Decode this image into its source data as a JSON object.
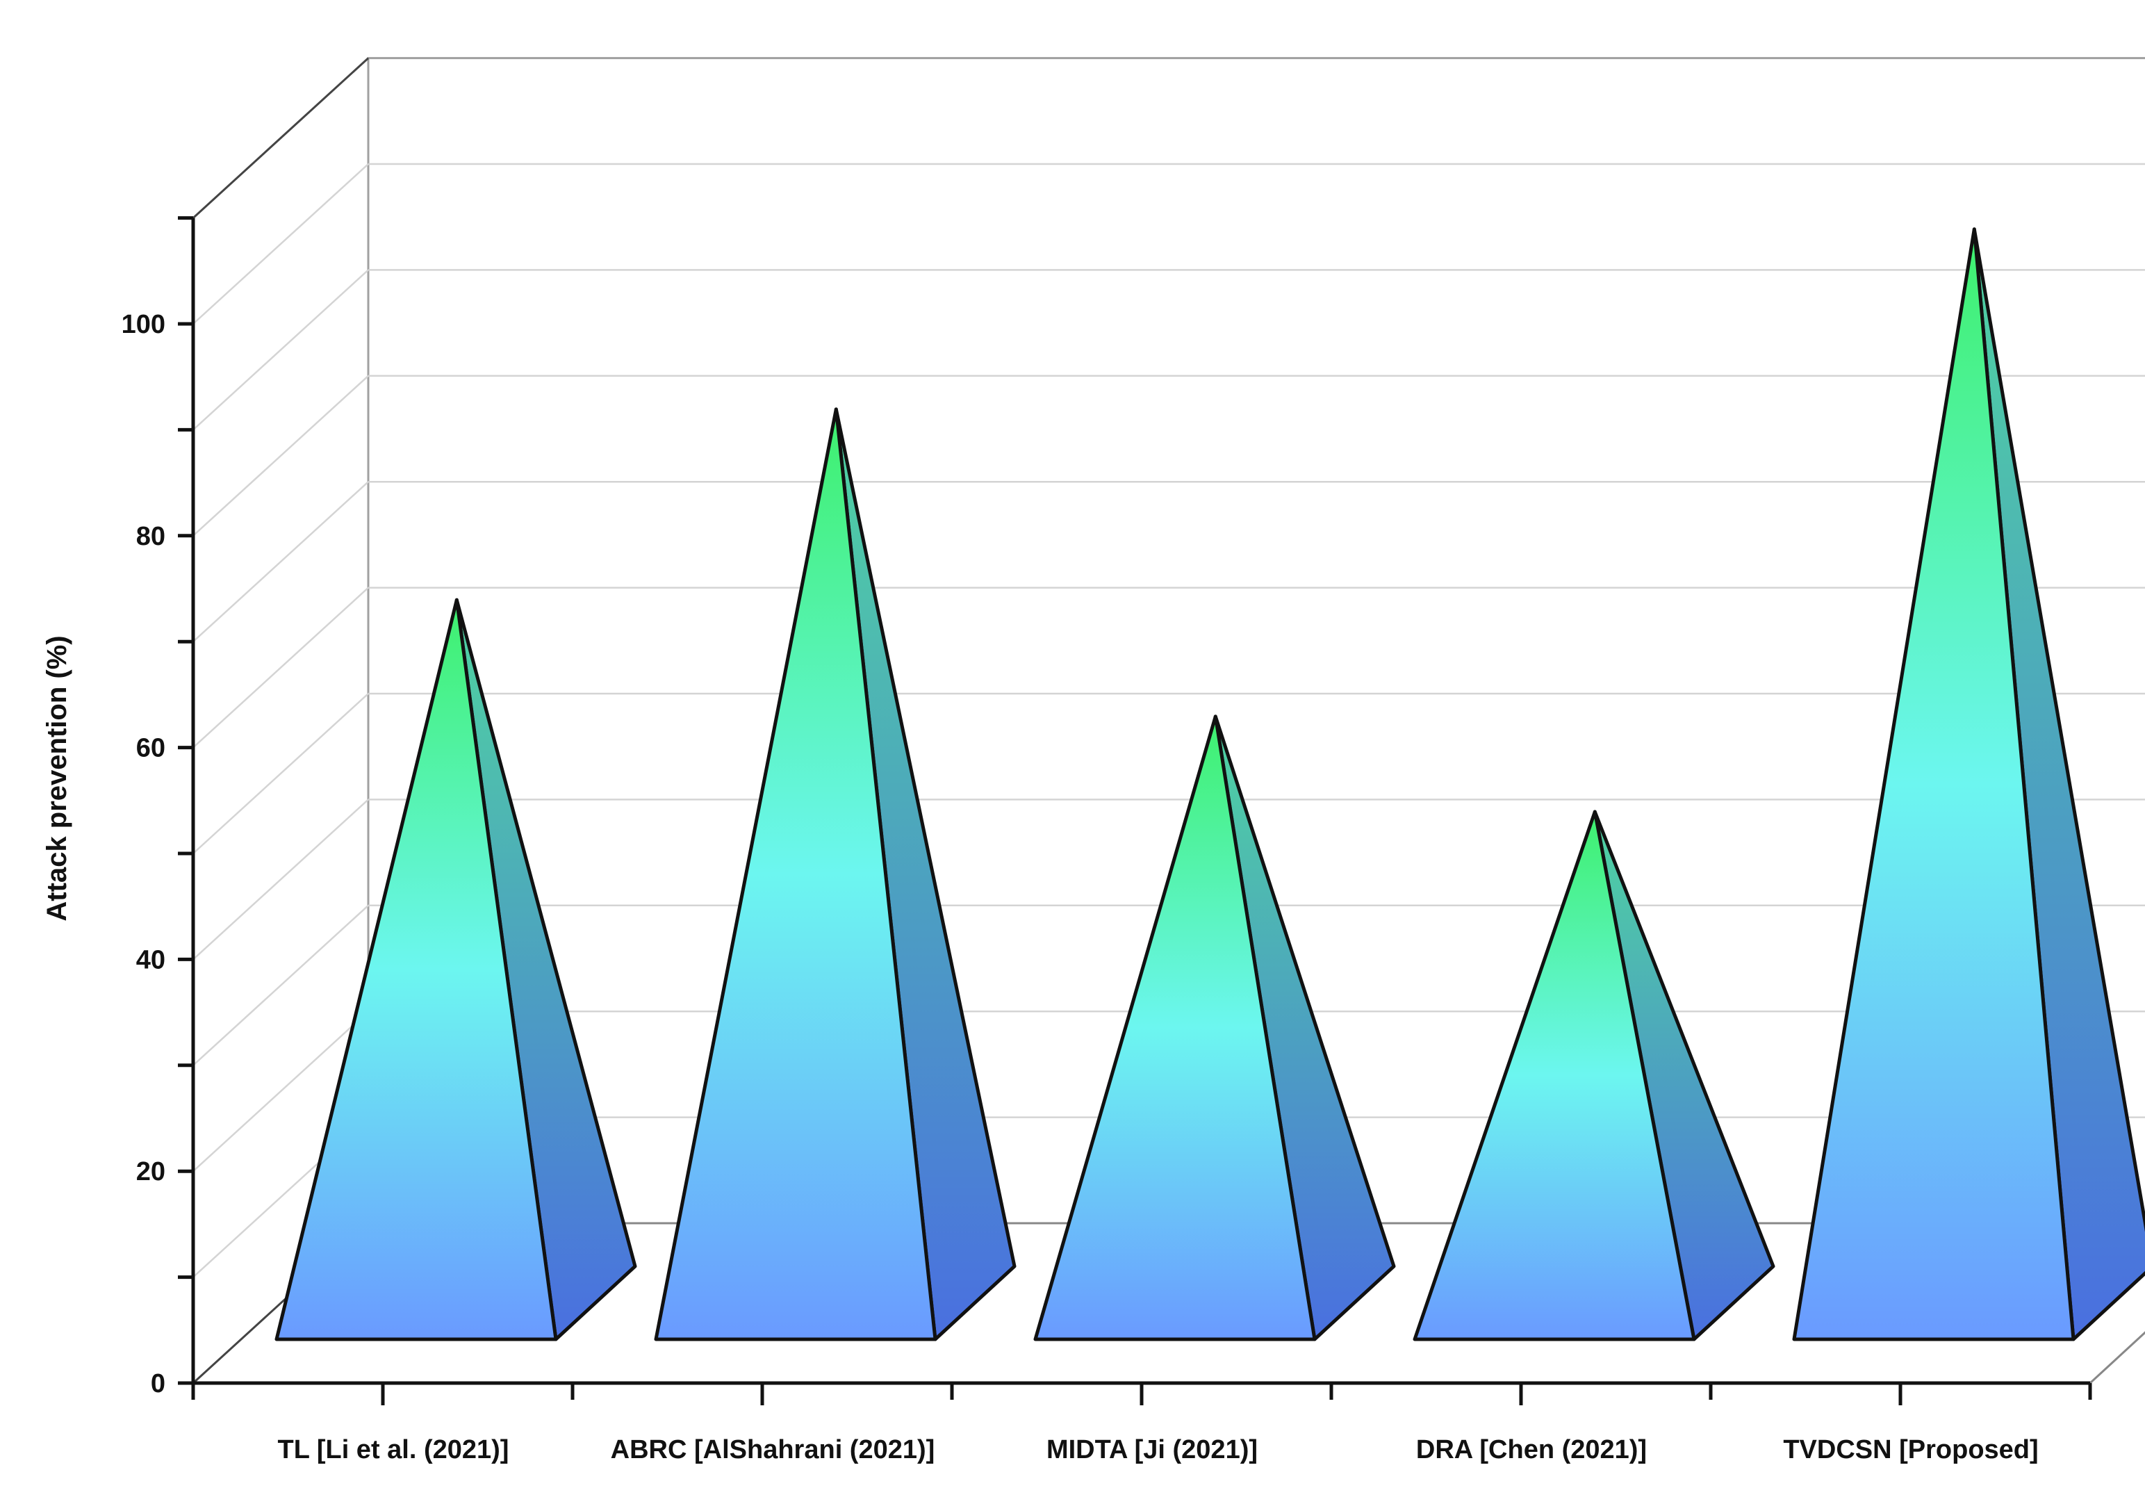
{
  "chart_data": {
    "type": "bar",
    "bar_shape": "pyramid-3d",
    "title": "",
    "xlabel": "",
    "ylabel": "Attack prevention (%)",
    "ylim": [
      0,
      110
    ],
    "yticks": [
      "0",
      "20",
      "40",
      "60",
      "80",
      "100"
    ],
    "grid": true,
    "legend": "none",
    "categories": [
      "TL [Li et al. (2021)]",
      "ABRC [AlShahrani (2021)]",
      "MIDTA [Ji (2021)]",
      "DRA [Chen (2021)]",
      "TVDCSN [Proposed]"
    ],
    "values": [
      70,
      88,
      59,
      50,
      105
    ],
    "colors": {
      "top": "#3ef06c",
      "middle": "#6cf6f0",
      "bottom": "#6a9aff",
      "side_top": "#4fd4a0",
      "side_bottom": "#4a6fe0",
      "outline": "#111111",
      "grid": "#d4d4d4"
    }
  }
}
